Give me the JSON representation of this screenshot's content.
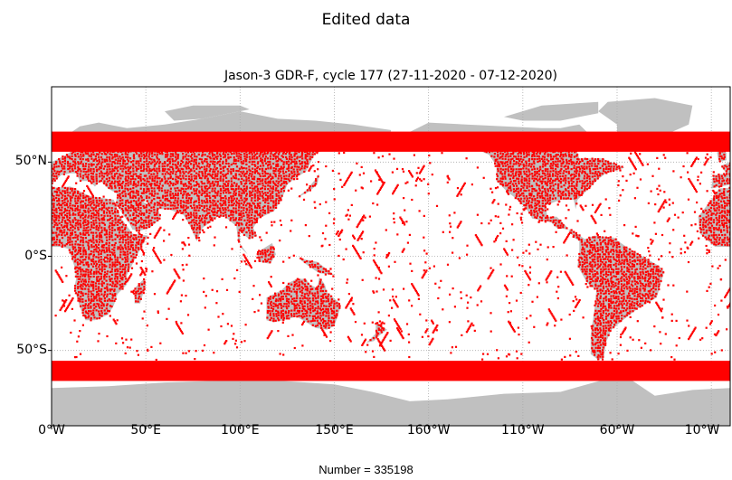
{
  "figure": {
    "suptitle": "Edited data",
    "title": "Jason-3 GDR-F, cycle 177 (27-11-2020 - 07-12-2020)",
    "footer": "Number = 335198"
  },
  "map": {
    "projection": "plate-carree",
    "lon_range": [
      0,
      360
    ],
    "lat_range": [
      -90,
      90
    ],
    "land_color": "#c0c0c0",
    "ocean_color": "#ffffff",
    "point_color": "#ff0000",
    "grid_color": "#aaaaaa",
    "grid": true,
    "xticks": [
      {
        "lon": 0,
        "label": "0°W"
      },
      {
        "lon": 50,
        "label": "50°E"
      },
      {
        "lon": 100,
        "label": "100°E"
      },
      {
        "lon": 150,
        "label": "150°E"
      },
      {
        "lon": 200,
        "label": "160°W"
      },
      {
        "lon": 250,
        "label": "110°W"
      },
      {
        "lon": 300,
        "label": "60°W"
      },
      {
        "lon": 350,
        "label": "10°W"
      }
    ],
    "yticks": [
      {
        "lat": 50,
        "label": "50°N"
      },
      {
        "lat": 0,
        "label": "0°S"
      },
      {
        "lat": -50,
        "label": "50°S"
      }
    ]
  },
  "chart_data": {
    "type": "scatter",
    "title": "Jason-3 GDR-F, cycle 177 (27-11-2020 - 07-12-2020)",
    "xlabel": "",
    "ylabel": "",
    "xlim": [
      0,
      360
    ],
    "ylim": [
      -90,
      90
    ],
    "description_count": 335198,
    "data_coverage_lat": [
      -66.2,
      66.2
    ],
    "dense_regions": [
      {
        "name": "north-band",
        "lon": [
          0,
          360
        ],
        "lat": [
          55,
          66
        ]
      },
      {
        "name": "south-band",
        "lon": [
          0,
          360
        ],
        "lat": [
          -66,
          -56
        ]
      },
      {
        "name": "africa",
        "lon": [
          0,
          50
        ],
        "lat": [
          -35,
          35
        ]
      },
      {
        "name": "eurasia",
        "lon": [
          0,
          140
        ],
        "lat": [
          20,
          66
        ]
      },
      {
        "name": "north-america",
        "lon": [
          235,
          300
        ],
        "lat": [
          15,
          66
        ]
      },
      {
        "name": "south-america",
        "lon": [
          280,
          325
        ],
        "lat": [
          -55,
          12
        ]
      },
      {
        "name": "australia",
        "lon": [
          113,
          154
        ],
        "lat": [
          -39,
          -11
        ]
      },
      {
        "name": "greenland",
        "lon": [
          300,
          340
        ],
        "lat": [
          60,
          66
        ]
      }
    ]
  }
}
